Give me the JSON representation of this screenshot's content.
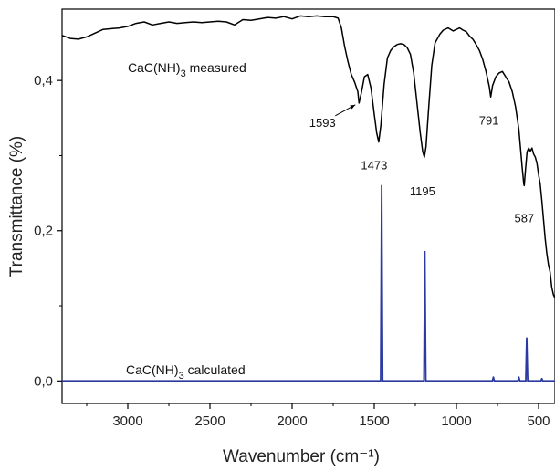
{
  "chart_data": {
    "type": "line",
    "xlabel": "Wavenumber (cm⁻¹)",
    "ylabel": "Transmittance (%)",
    "xlim": [
      3400,
      400
    ],
    "ylim": [
      -0.03,
      0.495
    ],
    "x_reversed": true,
    "grid": false,
    "x_ticks": [
      {
        "value": 3000,
        "label": "3000"
      },
      {
        "value": 2500,
        "label": "2500"
      },
      {
        "value": 2000,
        "label": "2000"
      },
      {
        "value": 1500,
        "label": "1500"
      },
      {
        "value": 1000,
        "label": "1000"
      },
      {
        "value": 500,
        "label": "500"
      }
    ],
    "y_ticks": [
      {
        "value": 0.0,
        "label": "0,0"
      },
      {
        "value": 0.2,
        "label": "0,2"
      },
      {
        "value": 0.4,
        "label": "0,4"
      }
    ],
    "series": [
      {
        "name": "CaC(NH)3 measured",
        "label_main": "CaC(NH)",
        "label_sub": "3",
        "label_tail": " measured",
        "color": "#000000",
        "points": [
          [
            3400,
            0.46
          ],
          [
            3350,
            0.456
          ],
          [
            3300,
            0.455
          ],
          [
            3250,
            0.458
          ],
          [
            3200,
            0.463
          ],
          [
            3150,
            0.468
          ],
          [
            3100,
            0.469
          ],
          [
            3050,
            0.47
          ],
          [
            3000,
            0.472
          ],
          [
            2950,
            0.476
          ],
          [
            2900,
            0.478
          ],
          [
            2850,
            0.474
          ],
          [
            2800,
            0.476
          ],
          [
            2750,
            0.478
          ],
          [
            2700,
            0.476
          ],
          [
            2650,
            0.477
          ],
          [
            2600,
            0.478
          ],
          [
            2550,
            0.477
          ],
          [
            2500,
            0.478
          ],
          [
            2450,
            0.479
          ],
          [
            2400,
            0.478
          ],
          [
            2350,
            0.474
          ],
          [
            2300,
            0.481
          ],
          [
            2250,
            0.48
          ],
          [
            2200,
            0.482
          ],
          [
            2150,
            0.484
          ],
          [
            2100,
            0.483
          ],
          [
            2050,
            0.485
          ],
          [
            2000,
            0.482
          ],
          [
            1950,
            0.486
          ],
          [
            1900,
            0.485
          ],
          [
            1850,
            0.486
          ],
          [
            1800,
            0.485
          ],
          [
            1750,
            0.485
          ],
          [
            1720,
            0.483
          ],
          [
            1700,
            0.47
          ],
          [
            1680,
            0.445
          ],
          [
            1660,
            0.425
          ],
          [
            1640,
            0.408
          ],
          [
            1620,
            0.398
          ],
          [
            1600,
            0.385
          ],
          [
            1593,
            0.37
          ],
          [
            1580,
            0.382
          ],
          [
            1560,
            0.405
          ],
          [
            1540,
            0.408
          ],
          [
            1520,
            0.39
          ],
          [
            1500,
            0.355
          ],
          [
            1485,
            0.33
          ],
          [
            1473,
            0.318
          ],
          [
            1460,
            0.34
          ],
          [
            1440,
            0.395
          ],
          [
            1420,
            0.43
          ],
          [
            1400,
            0.44
          ],
          [
            1380,
            0.445
          ],
          [
            1360,
            0.448
          ],
          [
            1340,
            0.449
          ],
          [
            1320,
            0.448
          ],
          [
            1300,
            0.444
          ],
          [
            1280,
            0.435
          ],
          [
            1260,
            0.41
          ],
          [
            1240,
            0.37
          ],
          [
            1220,
            0.33
          ],
          [
            1205,
            0.305
          ],
          [
            1195,
            0.298
          ],
          [
            1185,
            0.312
          ],
          [
            1170,
            0.36
          ],
          [
            1150,
            0.42
          ],
          [
            1130,
            0.45
          ],
          [
            1100,
            0.462
          ],
          [
            1080,
            0.467
          ],
          [
            1050,
            0.47
          ],
          [
            1020,
            0.466
          ],
          [
            1000,
            0.468
          ],
          [
            980,
            0.47
          ],
          [
            960,
            0.467
          ],
          [
            940,
            0.465
          ],
          [
            920,
            0.459
          ],
          [
            900,
            0.455
          ],
          [
            880,
            0.448
          ],
          [
            860,
            0.44
          ],
          [
            840,
            0.428
          ],
          [
            820,
            0.412
          ],
          [
            800,
            0.392
          ],
          [
            791,
            0.378
          ],
          [
            780,
            0.393
          ],
          [
            760,
            0.405
          ],
          [
            740,
            0.41
          ],
          [
            720,
            0.412
          ],
          [
            700,
            0.405
          ],
          [
            680,
            0.398
          ],
          [
            660,
            0.385
          ],
          [
            640,
            0.365
          ],
          [
            620,
            0.335
          ],
          [
            600,
            0.285
          ],
          [
            590,
            0.262
          ],
          [
            587,
            0.26
          ],
          [
            580,
            0.28
          ],
          [
            570,
            0.305
          ],
          [
            560,
            0.31
          ],
          [
            550,
            0.306
          ],
          [
            540,
            0.31
          ],
          [
            530,
            0.302
          ],
          [
            520,
            0.298
          ],
          [
            510,
            0.29
          ],
          [
            500,
            0.275
          ],
          [
            490,
            0.262
          ],
          [
            480,
            0.24
          ],
          [
            470,
            0.215
          ],
          [
            460,
            0.19
          ],
          [
            450,
            0.17
          ],
          [
            440,
            0.155
          ],
          [
            430,
            0.145
          ],
          [
            420,
            0.125
          ],
          [
            410,
            0.115
          ],
          [
            400,
            0.11
          ]
        ]
      },
      {
        "name": "CaC(NH)3 calculated",
        "label_main": "CaC(NH)",
        "label_sub": "3",
        "label_tail": " calculated",
        "color": "#2b3aa0",
        "peaks": [
          {
            "x": 1455,
            "y": 0.26
          },
          {
            "x": 1192,
            "y": 0.172
          },
          {
            "x": 775,
            "y": 0.005
          },
          {
            "x": 620,
            "y": 0.005
          },
          {
            "x": 572,
            "y": 0.057
          },
          {
            "x": 480,
            "y": 0.003
          }
        ]
      }
    ],
    "annotations": [
      {
        "text": "1593",
        "x": 1593,
        "y": 0.37
      },
      {
        "text": "1473",
        "x": 1473,
        "y": 0.318
      },
      {
        "text": "1195",
        "x": 1195,
        "y": 0.298
      },
      {
        "text": "791",
        "x": 791,
        "y": 0.378
      },
      {
        "text": "587",
        "x": 587,
        "y": 0.26
      }
    ]
  }
}
